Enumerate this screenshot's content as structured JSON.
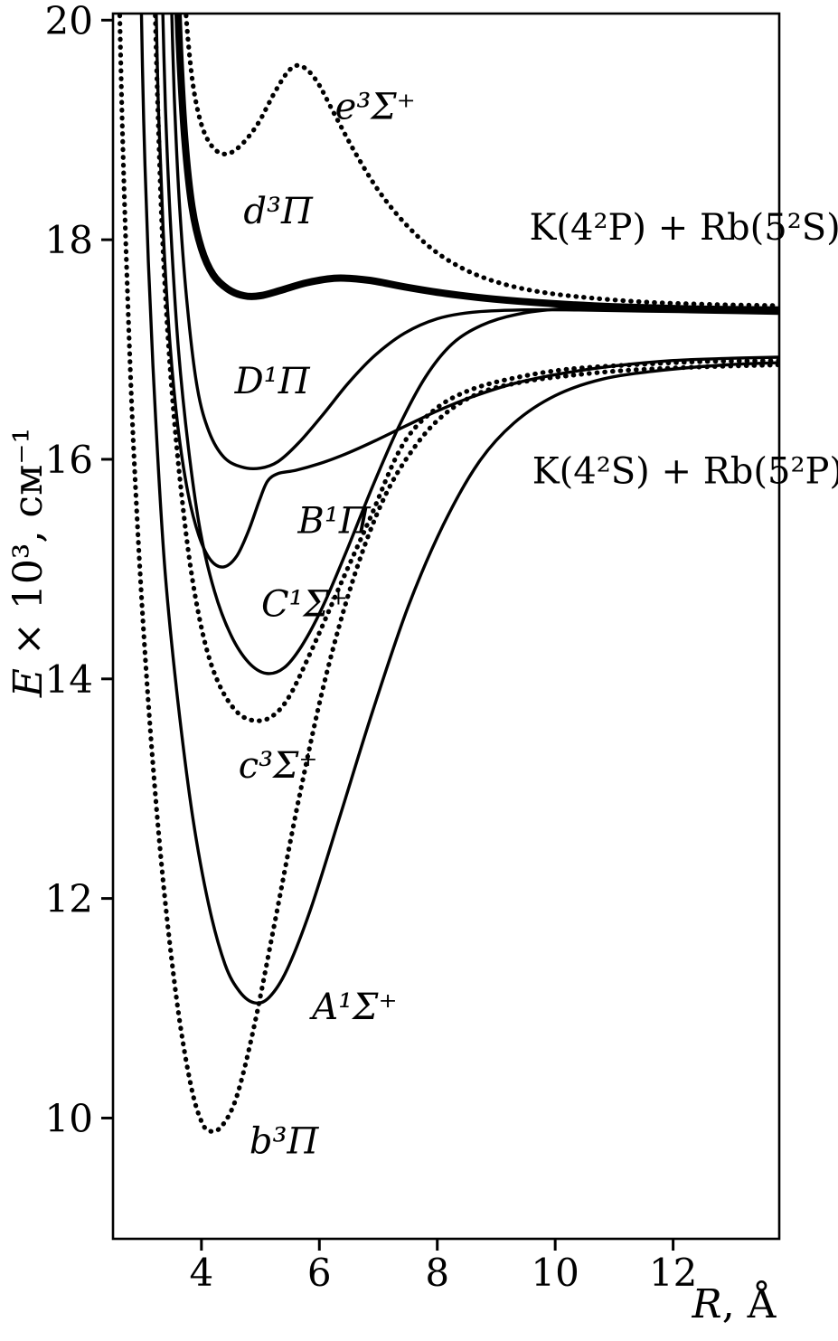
{
  "figure": {
    "y_axis": {
      "var": "E",
      "rest": " × 10³, см⁻¹"
    },
    "x_axis": {
      "var": "R",
      "rest": ", Å"
    }
  },
  "chart_data": {
    "type": "line",
    "title": "",
    "xlabel": "R, Å",
    "ylabel": "E × 10³, см⁻¹",
    "xlim": [
      2.5,
      13.8
    ],
    "ylim": [
      8.9,
      20.06
    ],
    "x_ticks": [
      4,
      6,
      8,
      10,
      12
    ],
    "y_ticks": [
      10,
      12,
      14,
      16,
      18,
      20
    ],
    "ink": "#000000",
    "background": "#ffffff",
    "grid": false,
    "asymptote_labels": [
      {
        "label": "K(4²P) + Rb(5²S)",
        "energy": 17.4,
        "label_pos": [
          12.2,
          18.0
        ]
      },
      {
        "label": "K(4²S) + Rb(5²P)",
        "energy": 16.9,
        "label_pos": [
          12.25,
          15.78
        ]
      }
    ],
    "series": [
      {
        "id": "b3Pi",
        "label": "b³Π",
        "style": "dotted",
        "label_pos": [
          5.4,
          9.68
        ],
        "points": [
          [
            2.6,
            20.4
          ],
          [
            2.66,
            19.0
          ],
          [
            2.74,
            17.6
          ],
          [
            2.85,
            16.1
          ],
          [
            3.0,
            14.6
          ],
          [
            3.18,
            13.2
          ],
          [
            3.38,
            12.0
          ],
          [
            3.6,
            11.0
          ],
          [
            3.82,
            10.3
          ],
          [
            4.0,
            9.97
          ],
          [
            4.15,
            9.88
          ],
          [
            4.35,
            9.93
          ],
          [
            4.6,
            10.2
          ],
          [
            4.9,
            10.85
          ],
          [
            5.25,
            11.8
          ],
          [
            5.65,
            12.9
          ],
          [
            6.1,
            14.0
          ],
          [
            6.6,
            14.95
          ],
          [
            7.1,
            15.65
          ],
          [
            7.6,
            16.1
          ],
          [
            8.1,
            16.4
          ],
          [
            8.7,
            16.6
          ],
          [
            9.4,
            16.7
          ],
          [
            10.2,
            16.76
          ],
          [
            11.2,
            16.81
          ],
          [
            12.4,
            16.84
          ],
          [
            13.8,
            16.86
          ]
        ]
      },
      {
        "id": "A1Sigma",
        "label": "A¹Σ⁺",
        "style": "solid",
        "label_pos": [
          6.6,
          10.9
        ],
        "points": [
          [
            2.97,
            20.4
          ],
          [
            3.02,
            19.1
          ],
          [
            3.1,
            17.8
          ],
          [
            3.22,
            16.4
          ],
          [
            3.38,
            15.0
          ],
          [
            3.6,
            13.8
          ],
          [
            3.85,
            12.75
          ],
          [
            4.12,
            11.95
          ],
          [
            4.4,
            11.4
          ],
          [
            4.65,
            11.15
          ],
          [
            4.9,
            11.05
          ],
          [
            5.15,
            11.1
          ],
          [
            5.45,
            11.35
          ],
          [
            5.85,
            11.9
          ],
          [
            6.35,
            12.75
          ],
          [
            6.9,
            13.7
          ],
          [
            7.5,
            14.65
          ],
          [
            8.1,
            15.4
          ],
          [
            8.7,
            15.97
          ],
          [
            9.3,
            16.33
          ],
          [
            10.0,
            16.58
          ],
          [
            10.8,
            16.73
          ],
          [
            11.8,
            16.81
          ],
          [
            12.9,
            16.86
          ],
          [
            13.8,
            16.88
          ]
        ]
      },
      {
        "id": "c3Sigma",
        "label": "c³Σ⁺",
        "style": "dotted",
        "label_pos": [
          5.3,
          13.1
        ],
        "points": [
          [
            3.2,
            20.4
          ],
          [
            3.26,
            19.2
          ],
          [
            3.34,
            18.0
          ],
          [
            3.46,
            16.9
          ],
          [
            3.62,
            15.9
          ],
          [
            3.82,
            15.0
          ],
          [
            4.05,
            14.35
          ],
          [
            4.3,
            13.95
          ],
          [
            4.6,
            13.7
          ],
          [
            4.9,
            13.62
          ],
          [
            5.2,
            13.66
          ],
          [
            5.5,
            13.85
          ],
          [
            5.9,
            14.3
          ],
          [
            6.35,
            14.85
          ],
          [
            6.85,
            15.45
          ],
          [
            7.4,
            16.12
          ],
          [
            7.95,
            16.45
          ],
          [
            8.55,
            16.63
          ],
          [
            9.3,
            16.74
          ],
          [
            10.2,
            16.82
          ],
          [
            11.3,
            16.86
          ],
          [
            12.5,
            16.89
          ],
          [
            13.8,
            16.9
          ]
        ]
      },
      {
        "id": "C1Sigma",
        "label": "C¹Σ⁺",
        "style": "solid",
        "label_pos": [
          5.75,
          14.57
        ],
        "points": [
          [
            3.33,
            20.4
          ],
          [
            3.39,
            19.2
          ],
          [
            3.48,
            18.1
          ],
          [
            3.61,
            17.0
          ],
          [
            3.78,
            16.1
          ],
          [
            3.98,
            15.35
          ],
          [
            4.22,
            14.8
          ],
          [
            4.5,
            14.4
          ],
          [
            4.8,
            14.15
          ],
          [
            5.1,
            14.05
          ],
          [
            5.4,
            14.1
          ],
          [
            5.7,
            14.3
          ],
          [
            6.05,
            14.65
          ],
          [
            6.45,
            15.15
          ],
          [
            6.9,
            15.75
          ],
          [
            7.35,
            16.3
          ],
          [
            7.8,
            16.75
          ],
          [
            8.25,
            17.05
          ],
          [
            8.75,
            17.22
          ],
          [
            9.35,
            17.32
          ],
          [
            10.1,
            17.37
          ],
          [
            11.0,
            17.38
          ],
          [
            12.0,
            17.37
          ],
          [
            13.0,
            17.36
          ],
          [
            13.8,
            17.35
          ]
        ]
      },
      {
        "id": "B1Pi",
        "label": "B¹Π",
        "style": "solid",
        "label_pos": [
          6.25,
          15.33
        ],
        "points": [
          [
            3.22,
            20.4
          ],
          [
            3.27,
            19.2
          ],
          [
            3.35,
            18.1
          ],
          [
            3.46,
            17.1
          ],
          [
            3.6,
            16.3
          ],
          [
            3.77,
            15.7
          ],
          [
            3.96,
            15.3
          ],
          [
            4.16,
            15.08
          ],
          [
            4.38,
            15.02
          ],
          [
            4.6,
            15.12
          ],
          [
            4.8,
            15.35
          ],
          [
            4.98,
            15.62
          ],
          [
            5.12,
            15.8
          ],
          [
            5.3,
            15.87
          ],
          [
            5.6,
            15.9
          ],
          [
            6.0,
            15.96
          ],
          [
            6.45,
            16.05
          ],
          [
            6.95,
            16.17
          ],
          [
            7.45,
            16.3
          ],
          [
            8.0,
            16.44
          ],
          [
            8.6,
            16.57
          ],
          [
            9.3,
            16.69
          ],
          [
            10.1,
            16.78
          ],
          [
            11.0,
            16.85
          ],
          [
            12.0,
            16.9
          ],
          [
            13.0,
            16.92
          ],
          [
            13.8,
            16.93
          ]
        ]
      },
      {
        "id": "D1Pi",
        "label": "D¹Π",
        "style": "solid",
        "label_pos": [
          5.2,
          16.6
        ],
        "points": [
          [
            3.48,
            20.4
          ],
          [
            3.54,
            19.3
          ],
          [
            3.63,
            18.3
          ],
          [
            3.76,
            17.4
          ],
          [
            3.93,
            16.65
          ],
          [
            4.13,
            16.25
          ],
          [
            4.38,
            16.02
          ],
          [
            4.68,
            15.93
          ],
          [
            5.0,
            15.92
          ],
          [
            5.3,
            15.98
          ],
          [
            5.65,
            16.15
          ],
          [
            6.05,
            16.4
          ],
          [
            6.5,
            16.7
          ],
          [
            6.95,
            16.95
          ],
          [
            7.45,
            17.15
          ],
          [
            8.0,
            17.28
          ],
          [
            8.6,
            17.34
          ],
          [
            9.4,
            17.36
          ],
          [
            10.4,
            17.36
          ],
          [
            11.5,
            17.35
          ],
          [
            12.7,
            17.34
          ],
          [
            13.8,
            17.33
          ]
        ]
      },
      {
        "id": "d3Pi",
        "label": "d³Π",
        "style": "bold",
        "label_pos": [
          5.3,
          18.15
        ],
        "points": [
          [
            3.58,
            20.4
          ],
          [
            3.64,
            19.6
          ],
          [
            3.72,
            18.9
          ],
          [
            3.84,
            18.3
          ],
          [
            4.0,
            17.92
          ],
          [
            4.2,
            17.68
          ],
          [
            4.45,
            17.55
          ],
          [
            4.72,
            17.49
          ],
          [
            5.0,
            17.49
          ],
          [
            5.35,
            17.54
          ],
          [
            5.8,
            17.61
          ],
          [
            6.3,
            17.65
          ],
          [
            6.85,
            17.63
          ],
          [
            7.45,
            17.57
          ],
          [
            8.15,
            17.51
          ],
          [
            8.95,
            17.46
          ],
          [
            9.9,
            17.42
          ],
          [
            11.0,
            17.39
          ],
          [
            12.3,
            17.37
          ],
          [
            13.8,
            17.36
          ]
        ]
      },
      {
        "id": "e3Sigma",
        "label": "e³Σ⁺",
        "style": "dotted",
        "label_pos": [
          6.95,
          19.1
        ],
        "points": [
          [
            3.7,
            20.4
          ],
          [
            3.76,
            19.9
          ],
          [
            3.86,
            19.4
          ],
          [
            4.0,
            19.05
          ],
          [
            4.18,
            18.85
          ],
          [
            4.4,
            18.78
          ],
          [
            4.65,
            18.85
          ],
          [
            4.95,
            19.05
          ],
          [
            5.25,
            19.35
          ],
          [
            5.5,
            19.55
          ],
          [
            5.7,
            19.58
          ],
          [
            5.95,
            19.45
          ],
          [
            6.25,
            19.15
          ],
          [
            6.6,
            18.8
          ],
          [
            7.0,
            18.45
          ],
          [
            7.45,
            18.15
          ],
          [
            7.95,
            17.9
          ],
          [
            8.5,
            17.72
          ],
          [
            9.1,
            17.6
          ],
          [
            9.8,
            17.52
          ],
          [
            10.6,
            17.47
          ],
          [
            11.6,
            17.43
          ],
          [
            12.7,
            17.41
          ],
          [
            13.8,
            17.4
          ]
        ]
      }
    ]
  }
}
